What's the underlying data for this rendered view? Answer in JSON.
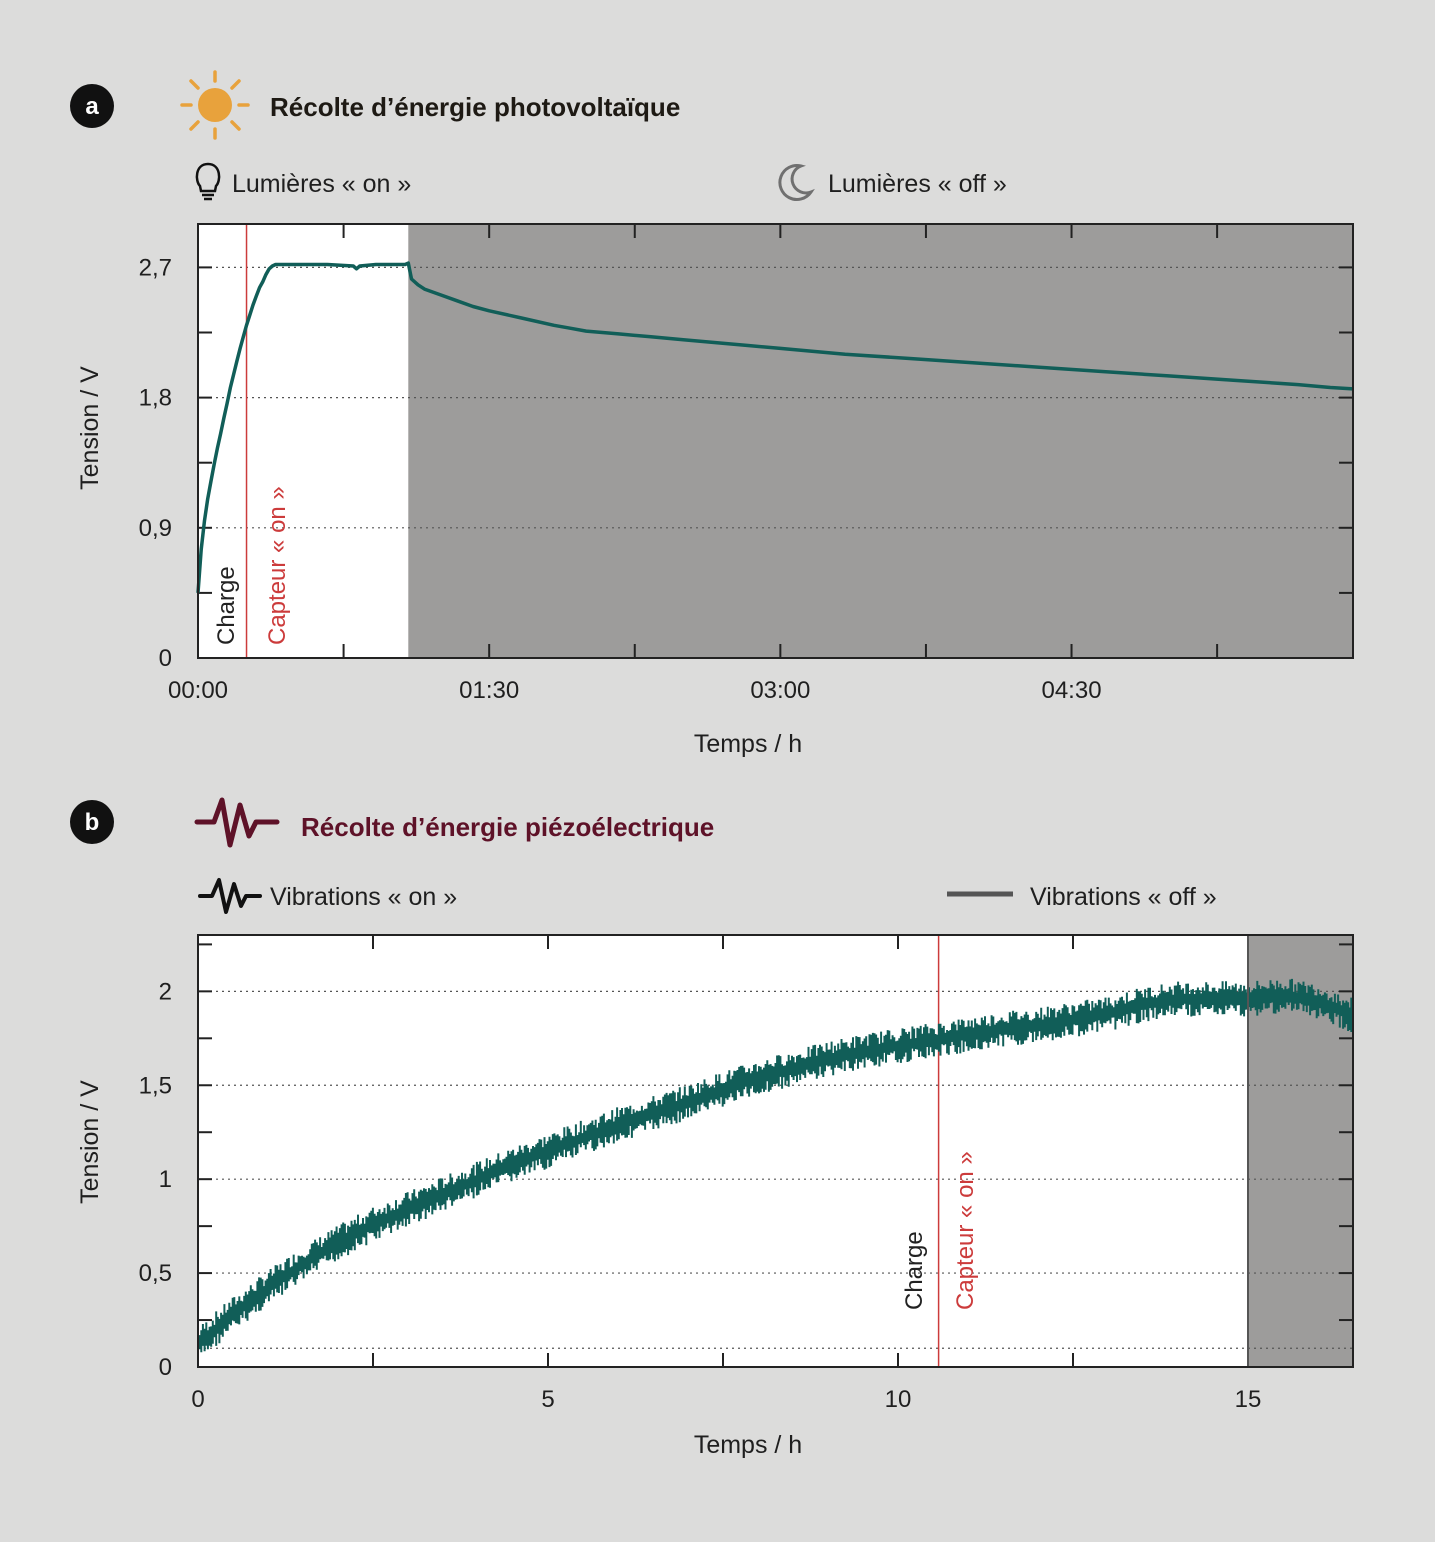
{
  "panel_a": {
    "letter": "a",
    "title": "Récolte d’énergie photovoltaïque",
    "title_icon": "sun-icon",
    "legend": [
      {
        "icon": "lightbulb-icon",
        "label": "Lumières « on »"
      },
      {
        "icon": "moon-icon",
        "label": "Lumières « off »"
      }
    ],
    "annotations": {
      "charge": "Charge",
      "sensor_on": "Capteur « on »"
    }
  },
  "panel_b": {
    "letter": "b",
    "title": "Récolte d’énergie piézoélectrique",
    "title_icon": "vibration-wave-icon",
    "legend": [
      {
        "icon": "vibration-wave-icon",
        "label": "Vibrations « on »"
      },
      {
        "icon": "flat-line-icon",
        "label": "Vibrations « off »"
      }
    ],
    "annotations": {
      "charge": "Charge",
      "sensor_on": "Capteur « on »"
    }
  },
  "colors": {
    "background": "#dcdcdb",
    "series": "#115e58",
    "off_region": "#9d9c9b",
    "sensor_line": "#cc3b3b",
    "sun": "#e8a23c",
    "piezo_title": "#5e1228"
  },
  "chart_data": [
    {
      "type": "line",
      "xlabel": "Temps / h",
      "ylabel": "Tension / V",
      "x_unit": "minutes",
      "xlim": [
        0,
        357
      ],
      "ylim": [
        0,
        3.0
      ],
      "x_ticks": [
        0,
        90,
        180,
        270
      ],
      "x_tick_labels": [
        "00:00",
        "01:30",
        "03:00",
        "04:30"
      ],
      "y_ticks": [
        0,
        0.9,
        1.8,
        2.7
      ],
      "y_tick_labels": [
        "0",
        "0,9",
        "1,8",
        "2,7"
      ],
      "grid": "dotted horizontal at y ticks",
      "lights_off_from": 65,
      "sensor_on_at": 15,
      "series": [
        {
          "x": [
            0,
            1,
            2,
            3,
            4,
            5,
            6,
            7,
            8,
            9,
            10,
            11,
            12,
            13,
            14,
            15,
            16,
            17,
            18,
            19,
            20,
            21,
            22,
            23,
            24,
            25,
            26,
            27,
            28,
            29,
            30,
            40,
            48,
            49,
            50,
            55,
            60,
            64,
            65,
            66,
            68,
            70,
            75,
            80,
            85,
            90,
            100,
            110,
            115,
            120,
            130,
            140,
            150,
            160,
            170,
            180,
            200,
            220,
            240,
            260,
            280,
            300,
            320,
            340,
            350,
            357
          ],
          "y": [
            0.45,
            0.75,
            0.95,
            1.1,
            1.22,
            1.34,
            1.45,
            1.55,
            1.66,
            1.76,
            1.87,
            1.96,
            2.05,
            2.14,
            2.22,
            2.3,
            2.37,
            2.44,
            2.5,
            2.56,
            2.6,
            2.65,
            2.69,
            2.71,
            2.72,
            2.72,
            2.72,
            2.72,
            2.72,
            2.72,
            2.72,
            2.72,
            2.71,
            2.69,
            2.71,
            2.72,
            2.72,
            2.72,
            2.73,
            2.62,
            2.58,
            2.55,
            2.51,
            2.47,
            2.43,
            2.4,
            2.35,
            2.3,
            2.28,
            2.26,
            2.24,
            2.22,
            2.2,
            2.18,
            2.16,
            2.14,
            2.1,
            2.07,
            2.04,
            2.01,
            1.98,
            1.95,
            1.92,
            1.89,
            1.87,
            1.86
          ]
        }
      ]
    },
    {
      "type": "line",
      "xlabel": "Temps / h",
      "ylabel": "Tension / V",
      "xlim": [
        0,
        16.5
      ],
      "ylim": [
        0,
        2.3
      ],
      "x_ticks": [
        0,
        5,
        10,
        15
      ],
      "x_tick_labels": [
        "0",
        "5",
        "10",
        "15"
      ],
      "y_ticks": [
        0,
        0.5,
        1,
        1.5,
        2
      ],
      "y_tick_labels": [
        "0",
        "0,5",
        "1",
        "1,5",
        "2"
      ],
      "grid": "dotted horizontal",
      "vibrations_off_from": 15,
      "sensor_on_at": 10.58,
      "noise_band": 0.05,
      "series": [
        {
          "x": [
            0,
            0.5,
            1,
            1.5,
            2,
            2.5,
            3,
            3.5,
            4,
            4.5,
            5,
            5.5,
            6,
            6.5,
            7,
            7.5,
            8,
            8.5,
            9,
            9.5,
            10,
            10.5,
            11,
            11.5,
            12,
            12.5,
            13,
            13.5,
            14,
            14.5,
            15,
            15.5,
            16,
            16.5
          ],
          "y": [
            0.12,
            0.28,
            0.42,
            0.55,
            0.66,
            0.76,
            0.84,
            0.92,
            1.0,
            1.08,
            1.15,
            1.22,
            1.29,
            1.35,
            1.41,
            1.48,
            1.54,
            1.59,
            1.64,
            1.68,
            1.71,
            1.74,
            1.77,
            1.8,
            1.82,
            1.85,
            1.88,
            1.93,
            1.96,
            1.96,
            1.96,
            1.98,
            1.95,
            1.87
          ]
        }
      ]
    }
  ]
}
